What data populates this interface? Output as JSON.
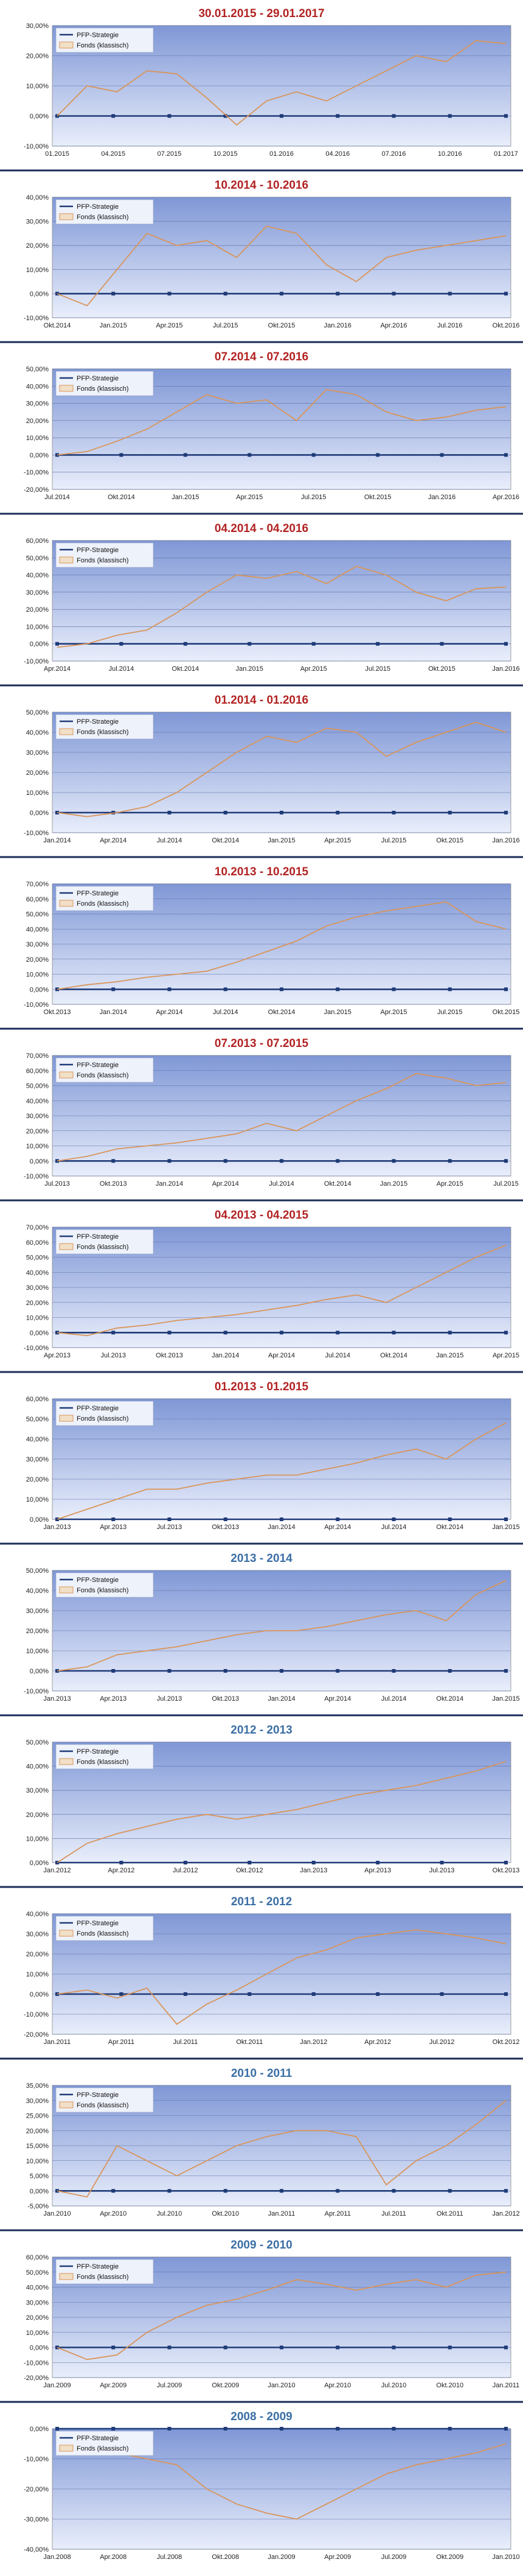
{
  "colors": {
    "title_red": "#b22222",
    "title_blue": "#3a6ea5",
    "line_strategy": "#1f3b78",
    "line_fonds": "#d9955a",
    "plot_top": "#7f97d6",
    "plot_bottom": "#e9eefb",
    "separator": "#1c2c58"
  },
  "legend": {
    "strategy": "PFP-Strategie",
    "fonds": "Fonds (klassisch)"
  },
  "chart_data": [
    {
      "type": "line",
      "title": "30.01.2015 - 29.01.2017",
      "title_color": "red",
      "y_ticks": [
        "30,00%",
        "20,00%",
        "10,00%",
        "0,00%",
        "-10,00%"
      ],
      "ylim": [
        -10,
        30
      ],
      "x_ticks": [
        "01.2015",
        "04.2015",
        "07.2015",
        "10.2015",
        "01.2016",
        "04.2016",
        "07.2016",
        "10.2016",
        "01.2017"
      ],
      "series": [
        {
          "name": "PFP-Strategie",
          "values": [
            0,
            0,
            0,
            0,
            0,
            0,
            0,
            0,
            0
          ]
        },
        {
          "name": "Fonds (klassisch)",
          "values": [
            0,
            10,
            8,
            15,
            14,
            6,
            -3,
            5,
            8,
            5,
            10,
            15,
            20,
            18,
            25,
            24
          ]
        }
      ]
    },
    {
      "type": "line",
      "title": "10.2014 - 10.2016",
      "title_color": "red",
      "y_ticks": [
        "40,00%",
        "30,00%",
        "20,00%",
        "10,00%",
        "0,00%",
        "-10,00%"
      ],
      "ylim": [
        -10,
        40
      ],
      "x_ticks": [
        "Okt.2014",
        "Jan.2015",
        "Apr.2015",
        "Jul.2015",
        "Okt.2015",
        "Jan.2016",
        "Apr.2016",
        "Jul.2016",
        "Okt.2016"
      ],
      "series": [
        {
          "name": "PFP-Strategie",
          "values": [
            0,
            0,
            0,
            0,
            0,
            0,
            0,
            0,
            0
          ]
        },
        {
          "name": "Fonds (klassisch)",
          "values": [
            0,
            -5,
            10,
            25,
            20,
            22,
            15,
            28,
            25,
            12,
            5,
            15,
            18,
            20,
            22,
            24
          ]
        }
      ]
    },
    {
      "type": "line",
      "title": "07.2014 - 07.2016",
      "title_color": "red",
      "y_ticks": [
        "50,00%",
        "40,00%",
        "30,00%",
        "20,00%",
        "10,00%",
        "0,00%",
        "-10,00%",
        "-20,00%"
      ],
      "ylim": [
        -20,
        50
      ],
      "x_ticks": [
        "Jul.2014",
        "Okt.2014",
        "Jan.2015",
        "Apr.2015",
        "Jul.2015",
        "Okt.2015",
        "Jan.2016",
        "Apr.2016"
      ],
      "series": [
        {
          "name": "PFP-Strategie",
          "values": [
            0,
            0,
            0,
            0,
            0,
            0,
            0,
            0
          ]
        },
        {
          "name": "Fonds (klassisch)",
          "values": [
            0,
            2,
            8,
            15,
            25,
            35,
            30,
            32,
            20,
            38,
            35,
            25,
            20,
            22,
            26,
            28
          ]
        }
      ]
    },
    {
      "type": "line",
      "title": "04.2014 - 04.2016",
      "title_color": "red",
      "y_ticks": [
        "60,00%",
        "50,00%",
        "40,00%",
        "30,00%",
        "20,00%",
        "10,00%",
        "0,00%",
        "-10,00%"
      ],
      "ylim": [
        -10,
        60
      ],
      "x_ticks": [
        "Apr.2014",
        "Jul.2014",
        "Okt.2014",
        "Jan.2015",
        "Apr.2015",
        "Jul.2015",
        "Okt.2015",
        "Jan.2016"
      ],
      "series": [
        {
          "name": "PFP-Strategie",
          "values": [
            0,
            0,
            0,
            0,
            0,
            0,
            0,
            0
          ]
        },
        {
          "name": "Fonds (klassisch)",
          "values": [
            -2,
            0,
            5,
            8,
            18,
            30,
            40,
            38,
            42,
            35,
            45,
            40,
            30,
            25,
            32,
            33
          ]
        }
      ]
    },
    {
      "type": "line",
      "title": "01.2014 - 01.2016",
      "title_color": "red",
      "y_ticks": [
        "50,00%",
        "40,00%",
        "30,00%",
        "20,00%",
        "10,00%",
        "0,00%",
        "-10,00%"
      ],
      "ylim": [
        -10,
        50
      ],
      "x_ticks": [
        "Jan.2014",
        "Apr.2014",
        "Jul.2014",
        "Okt.2014",
        "Jan.2015",
        "Apr.2015",
        "Jul.2015",
        "Okt.2015",
        "Jan.2016"
      ],
      "series": [
        {
          "name": "PFP-Strategie",
          "values": [
            0,
            0,
            0,
            0,
            0,
            0,
            0,
            0,
            0
          ]
        },
        {
          "name": "Fonds (klassisch)",
          "values": [
            0,
            -2,
            0,
            3,
            10,
            20,
            30,
            38,
            35,
            42,
            40,
            28,
            35,
            40,
            45,
            40
          ]
        }
      ]
    },
    {
      "type": "line",
      "title": "10.2013 - 10.2015",
      "title_color": "red",
      "y_ticks": [
        "70,00%",
        "60,00%",
        "50,00%",
        "40,00%",
        "30,00%",
        "20,00%",
        "10,00%",
        "0,00%",
        "-10,00%"
      ],
      "ylim": [
        -10,
        70
      ],
      "x_ticks": [
        "Okt.2013",
        "Jan.2014",
        "Apr.2014",
        "Jul.2014",
        "Okt.2014",
        "Jan.2015",
        "Apr.2015",
        "Jul.2015",
        "Okt.2015"
      ],
      "series": [
        {
          "name": "PFP-Strategie",
          "values": [
            0,
            0,
            0,
            0,
            0,
            0,
            0,
            0,
            0
          ]
        },
        {
          "name": "Fonds (klassisch)",
          "values": [
            0,
            3,
            5,
            8,
            10,
            12,
            18,
            25,
            32,
            42,
            48,
            52,
            55,
            58,
            45,
            40
          ]
        }
      ]
    },
    {
      "type": "line",
      "title": "07.2013 - 07.2015",
      "title_color": "red",
      "y_ticks": [
        "70,00%",
        "60,00%",
        "50,00%",
        "40,00%",
        "30,00%",
        "20,00%",
        "10,00%",
        "0,00%",
        "-10,00%"
      ],
      "ylim": [
        -10,
        70
      ],
      "x_ticks": [
        "Jul.2013",
        "Okt.2013",
        "Jan.2014",
        "Apr.2014",
        "Jul.2014",
        "Okt.2014",
        "Jan.2015",
        "Apr.2015",
        "Jul.2015"
      ],
      "series": [
        {
          "name": "PFP-Strategie",
          "values": [
            0,
            0,
            0,
            0,
            0,
            0,
            0,
            0,
            0
          ]
        },
        {
          "name": "Fonds (klassisch)",
          "values": [
            0,
            3,
            8,
            10,
            12,
            15,
            18,
            25,
            20,
            30,
            40,
            48,
            58,
            55,
            50,
            52
          ]
        }
      ]
    },
    {
      "type": "line",
      "title": "04.2013 - 04.2015",
      "title_color": "red",
      "y_ticks": [
        "70,00%",
        "60,00%",
        "50,00%",
        "40,00%",
        "30,00%",
        "20,00%",
        "10,00%",
        "0,00%",
        "-10,00%"
      ],
      "ylim": [
        -10,
        70
      ],
      "x_ticks": [
        "Apr.2013",
        "Jul.2013",
        "Okt.2013",
        "Jan.2014",
        "Apr.2014",
        "Jul.2014",
        "Okt.2014",
        "Jan.2015",
        "Apr.2015"
      ],
      "series": [
        {
          "name": "PFP-Strategie",
          "values": [
            0,
            0,
            0,
            0,
            0,
            0,
            0,
            0,
            0
          ]
        },
        {
          "name": "Fonds (klassisch)",
          "values": [
            0,
            -2,
            3,
            5,
            8,
            10,
            12,
            15,
            18,
            22,
            25,
            20,
            30,
            40,
            50,
            58
          ]
        }
      ]
    },
    {
      "type": "line",
      "title": "01.2013 - 01.2015",
      "title_color": "red",
      "y_ticks": [
        "60,00%",
        "50,00%",
        "40,00%",
        "30,00%",
        "20,00%",
        "10,00%",
        "0,00%"
      ],
      "ylim": [
        0,
        60
      ],
      "x_ticks": [
        "Jan.2013",
        "Apr.2013",
        "Jul.2013",
        "Okt.2013",
        "Jan.2014",
        "Apr.2014",
        "Jul.2014",
        "Okt.2014",
        "Jan.2015"
      ],
      "series": [
        {
          "name": "PFP-Strategie",
          "values": [
            0,
            0,
            0,
            0,
            0,
            0,
            0,
            0,
            0
          ]
        },
        {
          "name": "Fonds (klassisch)",
          "values": [
            0,
            5,
            10,
            15,
            15,
            18,
            20,
            22,
            22,
            25,
            28,
            32,
            35,
            30,
            40,
            48
          ]
        }
      ]
    },
    {
      "type": "line",
      "title": "2013 - 2014",
      "title_color": "blue",
      "y_ticks": [
        "50,00%",
        "40,00%",
        "30,00%",
        "20,00%",
        "10,00%",
        "0,00%",
        "-10,00%"
      ],
      "ylim": [
        -10,
        50
      ],
      "x_ticks": [
        "Jan.2013",
        "Apr.2013",
        "Jul.2013",
        "Okt.2013",
        "Jan.2014",
        "Apr.2014",
        "Jul.2014",
        "Okt.2014",
        "Jan.2015"
      ],
      "series": [
        {
          "name": "PFP-Strategie",
          "values": [
            0,
            0,
            0,
            0,
            0,
            0,
            0,
            0,
            0
          ]
        },
        {
          "name": "Fonds (klassisch)",
          "values": [
            0,
            2,
            8,
            10,
            12,
            15,
            18,
            20,
            20,
            22,
            25,
            28,
            30,
            25,
            38,
            45
          ]
        }
      ]
    },
    {
      "type": "line",
      "title": "2012 - 2013",
      "title_color": "blue",
      "y_ticks": [
        "50,00%",
        "40,00%",
        "30,00%",
        "20,00%",
        "10,00%",
        "0,00%"
      ],
      "ylim": [
        0,
        50
      ],
      "x_ticks": [
        "Jan.2012",
        "Apr.2012",
        "Jul.2012",
        "Okt.2012",
        "Jan.2013",
        "Apr.2013",
        "Jul.2013",
        "Okt.2013"
      ],
      "series": [
        {
          "name": "PFP-Strategie",
          "values": [
            0,
            0,
            0,
            0,
            0,
            0,
            0,
            0
          ]
        },
        {
          "name": "Fonds (klassisch)",
          "values": [
            0,
            8,
            12,
            15,
            18,
            20,
            18,
            20,
            22,
            25,
            28,
            30,
            32,
            35,
            38,
            42
          ]
        }
      ]
    },
    {
      "type": "line",
      "title": "2011 - 2012",
      "title_color": "blue",
      "y_ticks": [
        "40,00%",
        "30,00%",
        "20,00%",
        "10,00%",
        "0,00%",
        "-10,00%",
        "-20,00%"
      ],
      "ylim": [
        -20,
        40
      ],
      "x_ticks": [
        "Jan.2011",
        "Apr.2011",
        "Jul.2011",
        "Okt.2011",
        "Jan.2012",
        "Apr.2012",
        "Jul.2012",
        "Okt.2012"
      ],
      "series": [
        {
          "name": "PFP-Strategie",
          "values": [
            0,
            0,
            0,
            0,
            0,
            0,
            0,
            0
          ]
        },
        {
          "name": "Fonds (klassisch)",
          "values": [
            0,
            2,
            -2,
            3,
            -15,
            -5,
            2,
            10,
            18,
            22,
            28,
            30,
            32,
            30,
            28,
            25
          ]
        }
      ]
    },
    {
      "type": "line",
      "title": "2010 - 2011",
      "title_color": "blue",
      "y_ticks": [
        "35,00%",
        "30,00%",
        "25,00%",
        "20,00%",
        "15,00%",
        "10,00%",
        "5,00%",
        "0,00%",
        "-5,00%"
      ],
      "ylim": [
        -5,
        35
      ],
      "x_ticks": [
        "Jan.2010",
        "Apr.2010",
        "Jul.2010",
        "Okt.2010",
        "Jan.2011",
        "Apr.2011",
        "Jul.2011",
        "Okt.2011",
        "Jan.2012"
      ],
      "series": [
        {
          "name": "PFP-Strategie",
          "values": [
            0,
            0,
            0,
            0,
            0,
            0,
            0,
            0,
            0
          ]
        },
        {
          "name": "Fonds (klassisch)",
          "values": [
            0,
            -2,
            15,
            10,
            5,
            10,
            15,
            18,
            20,
            20,
            18,
            2,
            10,
            15,
            22,
            30
          ]
        }
      ]
    },
    {
      "type": "line",
      "title": "2009 - 2010",
      "title_color": "blue",
      "y_ticks": [
        "60,00%",
        "50,00%",
        "40,00%",
        "30,00%",
        "20,00%",
        "10,00%",
        "0,00%",
        "-10,00%",
        "-20,00%"
      ],
      "ylim": [
        -20,
        60
      ],
      "x_ticks": [
        "Jan.2009",
        "Apr.2009",
        "Jul.2009",
        "Okt.2009",
        "Jan.2010",
        "Apr.2010",
        "Jul.2010",
        "Okt.2010",
        "Jan.2011"
      ],
      "series": [
        {
          "name": "PFP-Strategie",
          "values": [
            0,
            0,
            0,
            0,
            0,
            0,
            0,
            0,
            0
          ]
        },
        {
          "name": "Fonds (klassisch)",
          "values": [
            0,
            -8,
            -5,
            10,
            20,
            28,
            32,
            38,
            45,
            42,
            38,
            42,
            45,
            40,
            48,
            50
          ]
        }
      ]
    },
    {
      "type": "line",
      "title": "2008 - 2009",
      "title_color": "blue",
      "y_ticks": [
        "0,00%",
        "-10,00%",
        "-20,00%",
        "-30,00%",
        "-40,00%"
      ],
      "ylim": [
        -40,
        0
      ],
      "x_ticks": [
        "Jan.2008",
        "Apr.2008",
        "Jul.2008",
        "Okt.2008",
        "Jan.2009",
        "Apr.2009",
        "Jul.2009",
        "Okt.2009",
        "Jan.2010"
      ],
      "series": [
        {
          "name": "PFP-Strategie",
          "values": [
            0,
            0,
            0,
            0,
            0,
            0,
            0,
            0,
            0
          ]
        },
        {
          "name": "Fonds (klassisch)",
          "values": [
            -2,
            -5,
            -8,
            -10,
            -12,
            -20,
            -25,
            -28,
            -30,
            -25,
            -20,
            -15,
            -12,
            -10,
            -8,
            -5
          ]
        }
      ]
    }
  ]
}
